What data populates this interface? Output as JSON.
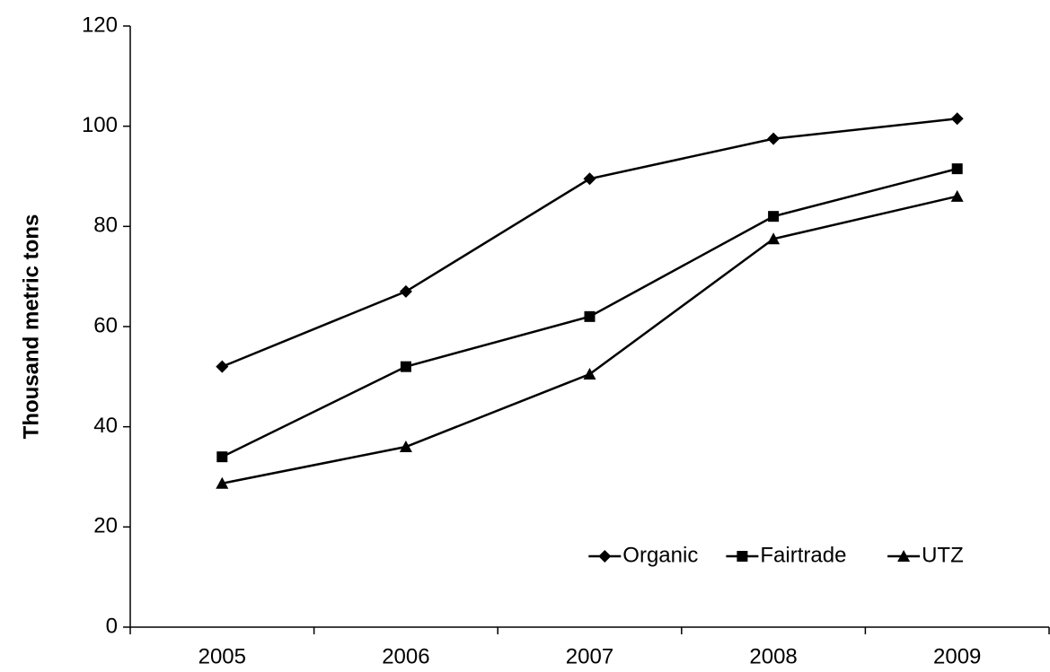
{
  "chart_data": {
    "type": "line",
    "y_label": "Thousand metric tons",
    "categories": [
      "2005",
      "2006",
      "2007",
      "2008",
      "2009"
    ],
    "series": [
      {
        "name": "Organic",
        "color": "#000000",
        "marker": "diamond",
        "values": [
          52,
          67,
          89.5,
          97.5,
          101.5
        ]
      },
      {
        "name": "Fairtrade",
        "color": "#000000",
        "marker": "square",
        "values": [
          34,
          52,
          62,
          82,
          91.5
        ]
      },
      {
        "name": "UTZ",
        "color": "#000000",
        "marker": "triangle",
        "values": [
          28.7,
          36,
          50.5,
          77.5,
          86
        ]
      }
    ],
    "ylim": [
      0,
      120
    ],
    "yticks": [
      0,
      20,
      40,
      60,
      80,
      100,
      120
    ],
    "grid": false,
    "legend": "lower right"
  }
}
